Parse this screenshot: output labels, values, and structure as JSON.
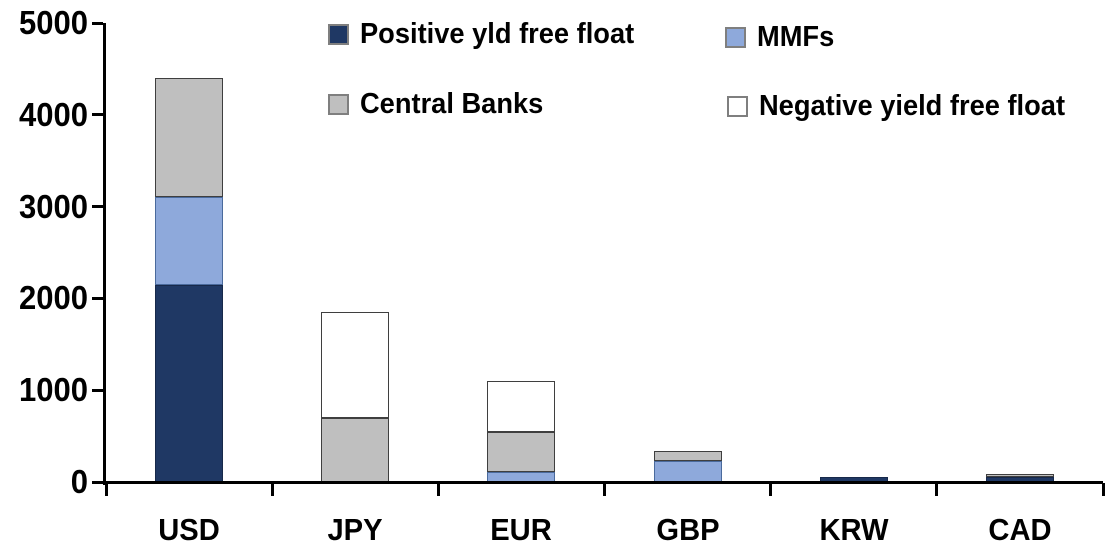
{
  "chart_data": {
    "type": "bar",
    "stacked": true,
    "title": "",
    "xlabel": "",
    "ylabel": "",
    "categories": [
      "USD",
      "JPY",
      "EUR",
      "GBP",
      "KRW",
      "CAD"
    ],
    "series": [
      {
        "name": "Positive yld free float",
        "color": "#1F3864",
        "border": "#17294a",
        "values": [
          2150,
          0,
          0,
          0,
          50,
          55
        ]
      },
      {
        "name": "MMFs",
        "color": "#8EA9DB",
        "border": "#4a6a9c",
        "values": [
          950,
          0,
          110,
          230,
          0,
          0
        ]
      },
      {
        "name": "Central Banks",
        "color": "#BFBFBF",
        "border": "#3f3f3f",
        "values": [
          1300,
          700,
          435,
          105,
          0,
          30
        ]
      },
      {
        "name": "Negative yield free float",
        "color": "#FFFFFF",
        "border": "#3f3f3f",
        "values": [
          0,
          1150,
          560,
          0,
          0,
          0
        ]
      }
    ],
    "totals": [
      4400,
      1850,
      1105,
      335,
      50,
      85
    ],
    "ylim": [
      0,
      5000
    ],
    "yticks": [
      0,
      1000,
      2000,
      3000,
      4000,
      5000
    ],
    "grid": false,
    "legend_position": "top",
    "legend_layout": "2x2",
    "axis_color": "#000000",
    "background_color": "#FFFFFF"
  }
}
